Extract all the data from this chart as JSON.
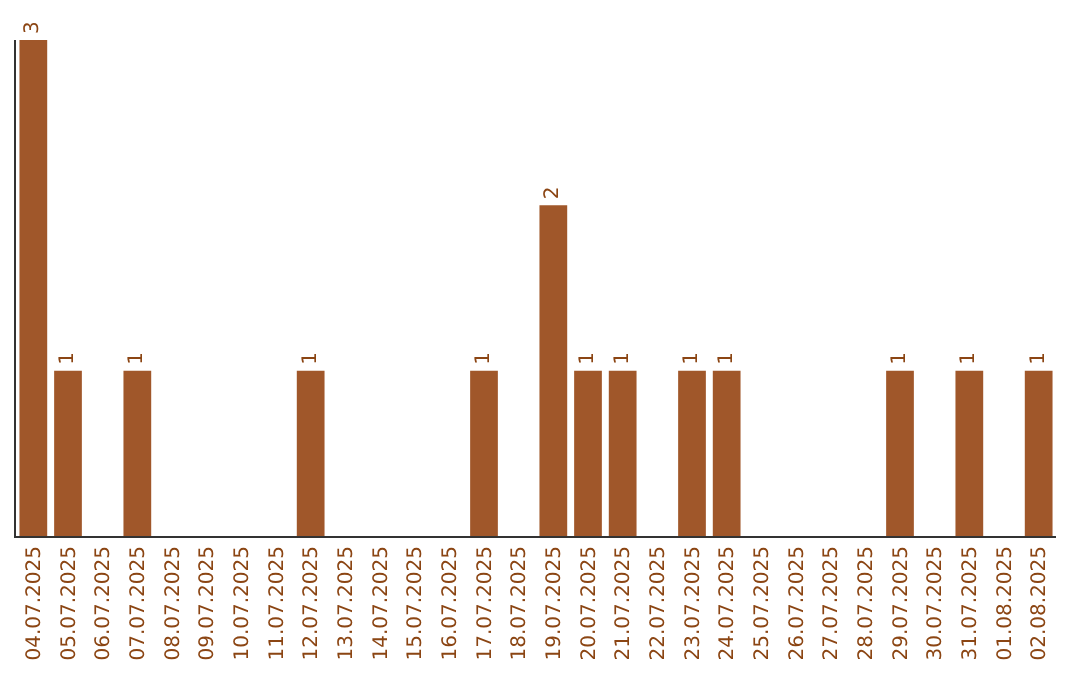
{
  "chart_data": {
    "type": "bar",
    "categories": [
      "04.07.2025",
      "05.07.2025",
      "06.07.2025",
      "07.07.2025",
      "08.07.2025",
      "09.07.2025",
      "10.07.2025",
      "11.07.2025",
      "12.07.2025",
      "13.07.2025",
      "14.07.2025",
      "15.07.2025",
      "16.07.2025",
      "17.07.2025",
      "18.07.2025",
      "19.07.2025",
      "20.07.2025",
      "21.07.2025",
      "22.07.2025",
      "23.07.2025",
      "24.07.2025",
      "25.07.2025",
      "26.07.2025",
      "27.07.2025",
      "28.07.2025",
      "29.07.2025",
      "30.07.2025",
      "31.07.2025",
      "01.08.2025",
      "02.08.2025"
    ],
    "values": [
      3,
      1,
      0,
      1,
      0,
      0,
      0,
      0,
      1,
      0,
      0,
      0,
      0,
      1,
      0,
      2,
      1,
      1,
      0,
      1,
      1,
      0,
      0,
      0,
      0,
      1,
      0,
      1,
      0,
      1
    ],
    "value_labels": [
      "3",
      "1",
      null,
      "1",
      null,
      null,
      null,
      null,
      "1",
      null,
      null,
      null,
      null,
      "1",
      null,
      "2",
      "1",
      "1",
      null,
      "1",
      "1",
      null,
      null,
      null,
      null,
      "1",
      null,
      "1",
      null,
      "1"
    ],
    "color": "#a0572a",
    "legend": false,
    "tick_labels": "x"
  }
}
